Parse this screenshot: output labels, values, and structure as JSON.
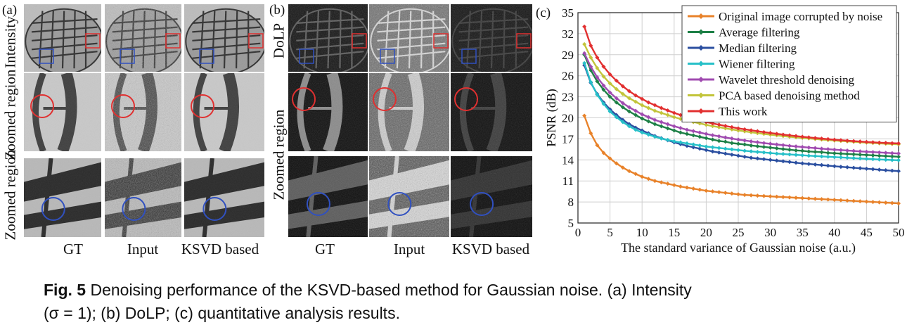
{
  "figure": {
    "panel_a_letter": "(a)",
    "panel_b_letter": "(b)",
    "panel_c_letter": "(c)",
    "panel_a": {
      "row_labels": [
        "Intensity",
        "Zoomed region",
        "Zoomed region"
      ],
      "col_labels": [
        "GT",
        "Input",
        "KSVD based"
      ]
    },
    "panel_b": {
      "row_labels": [
        "DoLP",
        "Zoomed region"
      ],
      "col_labels": [
        "GT",
        "Input",
        "KSVD based"
      ]
    },
    "caption": {
      "label": "Fig. 5",
      "text_line1": "Denoising performance of the KSVD-based method for Gaussian noise. (a) Intensity",
      "text_line2": "(σ = 1); (b) DoLP; (c) quantitative analysis results."
    }
  },
  "chart_data": {
    "type": "line",
    "xlabel": "The standard variance of Gaussian noise (a.u.)",
    "ylabel": "PSNR (dB)",
    "xlim": [
      0,
      50
    ],
    "ylim": [
      5,
      35
    ],
    "xticks": [
      0,
      5,
      10,
      15,
      20,
      25,
      30,
      35,
      40,
      45,
      50
    ],
    "yticks": [
      5,
      8,
      11,
      14,
      17,
      20,
      23,
      26,
      29,
      32,
      35
    ],
    "grid": true,
    "legend_position": "top-right",
    "x": [
      1,
      2,
      3,
      4,
      5,
      6,
      7,
      8,
      9,
      10,
      11,
      12,
      13,
      14,
      15,
      16,
      17,
      18,
      19,
      20,
      21,
      22,
      23,
      24,
      25,
      26,
      27,
      28,
      29,
      30,
      31,
      32,
      33,
      34,
      35,
      36,
      37,
      38,
      39,
      40,
      41,
      42,
      43,
      44,
      45,
      46,
      47,
      48,
      49,
      50
    ],
    "series": [
      {
        "name": "Original image corrupted by noise",
        "color": "#e8822a",
        "values": [
          20.3,
          17.8,
          16.1,
          15.0,
          14.2,
          13.5,
          12.9,
          12.4,
          12.0,
          11.6,
          11.3,
          11.0,
          10.8,
          10.6,
          10.4,
          10.2,
          10.05,
          9.9,
          9.75,
          9.6,
          9.5,
          9.4,
          9.3,
          9.2,
          9.1,
          9.0,
          8.95,
          8.9,
          8.85,
          8.8,
          8.75,
          8.7,
          8.65,
          8.6,
          8.55,
          8.5,
          8.45,
          8.4,
          8.35,
          8.3,
          8.25,
          8.2,
          8.15,
          8.1,
          8.05,
          8.0,
          7.95,
          7.9,
          7.85,
          7.8
        ]
      },
      {
        "name": "Average filtering",
        "color": "#1e8047",
        "values": [
          29.0,
          26.8,
          25.2,
          24.0,
          23.0,
          22.2,
          21.5,
          20.9,
          20.4,
          19.9,
          19.5,
          19.1,
          18.8,
          18.5,
          18.2,
          17.9,
          17.7,
          17.5,
          17.3,
          17.1,
          16.9,
          16.7,
          16.6,
          16.4,
          16.3,
          16.2,
          16.05,
          15.95,
          15.85,
          15.75,
          15.65,
          15.55,
          15.45,
          15.35,
          15.3,
          15.2,
          15.15,
          15.1,
          15.0,
          14.95,
          14.9,
          14.85,
          14.8,
          14.75,
          14.7,
          14.65,
          14.6,
          14.55,
          14.5,
          14.45
        ]
      },
      {
        "name": "Median filtering",
        "color": "#2b4fa0",
        "values": [
          27.5,
          25.0,
          23.4,
          22.2,
          21.2,
          20.4,
          19.7,
          19.1,
          18.6,
          18.2,
          17.8,
          17.4,
          17.1,
          16.8,
          16.5,
          16.25,
          16.0,
          15.8,
          15.6,
          15.4,
          15.2,
          15.05,
          14.9,
          14.75,
          14.6,
          14.45,
          14.3,
          14.2,
          14.1,
          14.0,
          13.9,
          13.8,
          13.7,
          13.6,
          13.5,
          13.42,
          13.34,
          13.26,
          13.18,
          13.1,
          13.02,
          12.95,
          12.88,
          12.81,
          12.74,
          12.67,
          12.6,
          12.53,
          12.46,
          12.4
        ]
      },
      {
        "name": "Wiener filtering",
        "color": "#26c0c8",
        "values": [
          27.8,
          25.1,
          23.3,
          22.0,
          20.9,
          20.1,
          19.4,
          18.8,
          18.3,
          17.9,
          17.6,
          17.3,
          17.05,
          16.85,
          16.65,
          16.5,
          16.35,
          16.2,
          16.05,
          15.9,
          15.8,
          15.7,
          15.6,
          15.5,
          15.4,
          15.3,
          15.22,
          15.14,
          15.06,
          14.98,
          14.9,
          14.84,
          14.78,
          14.72,
          14.66,
          14.6,
          14.55,
          14.5,
          14.45,
          14.4,
          14.35,
          14.3,
          14.25,
          14.2,
          14.15,
          14.1,
          14.06,
          14.02,
          13.98,
          13.95
        ]
      },
      {
        "name": "Wavelet threshold denoising",
        "color": "#a04bb0",
        "values": [
          29.2,
          27.3,
          25.8,
          24.6,
          23.6,
          22.8,
          22.1,
          21.5,
          21.0,
          20.5,
          20.1,
          19.7,
          19.4,
          19.1,
          18.8,
          18.55,
          18.3,
          18.1,
          17.9,
          17.7,
          17.52,
          17.36,
          17.2,
          17.05,
          16.9,
          16.77,
          16.64,
          16.52,
          16.4,
          16.3,
          16.2,
          16.1,
          16.0,
          15.92,
          15.84,
          15.76,
          15.68,
          15.6,
          15.53,
          15.46,
          15.4,
          15.34,
          15.28,
          15.22,
          15.16,
          15.11,
          15.06,
          15.01,
          14.96,
          14.92
        ]
      },
      {
        "name": "PCA based denoising method",
        "color": "#c2c43a",
        "values": [
          30.5,
          28.6,
          27.1,
          25.9,
          24.9,
          24.1,
          23.4,
          22.8,
          22.3,
          21.8,
          21.4,
          21.0,
          20.7,
          20.4,
          20.1,
          19.85,
          19.6,
          19.4,
          19.2,
          19.0,
          18.82,
          18.66,
          18.5,
          18.35,
          18.2,
          18.07,
          17.94,
          17.82,
          17.7,
          17.6,
          17.5,
          17.4,
          17.3,
          17.22,
          17.14,
          17.06,
          16.98,
          16.9,
          16.83,
          16.76,
          16.7,
          16.64,
          16.58,
          16.52,
          16.46,
          16.41,
          16.36,
          16.31,
          16.26,
          16.22
        ]
      },
      {
        "name": "This work",
        "color": "#e23030",
        "values": [
          33.0,
          30.3,
          28.6,
          27.3,
          26.2,
          25.3,
          24.5,
          23.8,
          23.2,
          22.7,
          22.2,
          21.8,
          21.4,
          21.05,
          20.7,
          20.4,
          20.1,
          19.85,
          19.6,
          19.4,
          19.2,
          19.02,
          18.84,
          18.67,
          18.5,
          18.36,
          18.22,
          18.09,
          17.96,
          17.84,
          17.72,
          17.61,
          17.5,
          17.4,
          17.3,
          17.21,
          17.12,
          17.04,
          16.96,
          16.88,
          16.81,
          16.74,
          16.68,
          16.62,
          16.56,
          16.51,
          16.46,
          16.42,
          16.38,
          16.35
        ]
      }
    ]
  }
}
